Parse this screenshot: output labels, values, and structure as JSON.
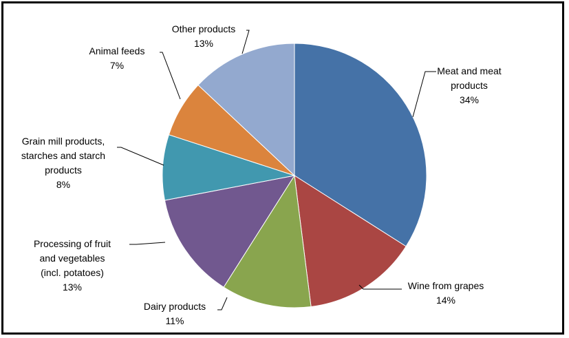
{
  "chart_data": {
    "type": "pie",
    "title": "",
    "slices": [
      {
        "label": "Meat and meat products",
        "label_lines": [
          "Meat and meat",
          "products"
        ],
        "percent_text": "34%",
        "value": 34,
        "color": "#4572A7"
      },
      {
        "label": "Wine from grapes",
        "label_lines": [
          "Wine from grapes"
        ],
        "percent_text": "14%",
        "value": 14,
        "color": "#AA4643"
      },
      {
        "label": "Dairy products",
        "label_lines": [
          "Dairy products"
        ],
        "percent_text": "11%",
        "value": 11,
        "color": "#89A54E"
      },
      {
        "label": "Processing of fruit and vegetables (incl. potatoes)",
        "label_lines": [
          "Processing of fruit",
          "and vegetables",
          "(incl. potatoes)"
        ],
        "percent_text": "13%",
        "value": 13,
        "color": "#71588F"
      },
      {
        "label": "Grain mill products, starches and starch products",
        "label_lines": [
          "Grain mill products,",
          "starches and starch",
          "products"
        ],
        "percent_text": "8%",
        "value": 8,
        "color": "#4198AF"
      },
      {
        "label": "Animal feeds",
        "label_lines": [
          "Animal feeds"
        ],
        "percent_text": "7%",
        "value": 7,
        "color": "#DB843D"
      },
      {
        "label": "Other products",
        "label_lines": [
          "Other products"
        ],
        "percent_text": "13%",
        "value": 13,
        "color": "#93A9CF"
      }
    ]
  }
}
